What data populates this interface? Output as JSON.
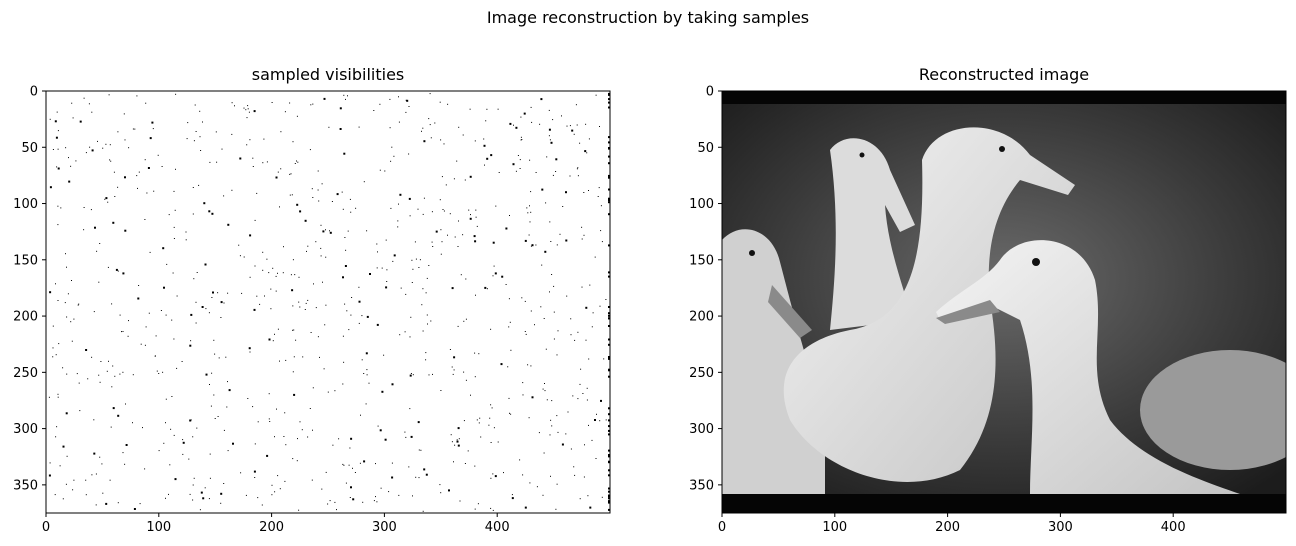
{
  "figure": {
    "suptitle": "Image reconstruction by taking samples"
  },
  "chart_data": [
    {
      "type": "heatmap",
      "title": "sampled visibilities",
      "colormap": "gray",
      "xlim": [
        0,
        500
      ],
      "ylim": [
        375,
        0
      ],
      "xticks": [
        0,
        100,
        200,
        300,
        400
      ],
      "yticks": [
        0,
        50,
        100,
        150,
        200,
        250,
        300,
        350
      ],
      "xticklabels": [
        "0",
        "100",
        "200",
        "300",
        "400"
      ],
      "yticklabels": [
        "0",
        "50",
        "100",
        "150",
        "200",
        "250",
        "300",
        "350"
      ],
      "description": "binary sampling mask: mostly white with sparse black sampled points"
    },
    {
      "type": "heatmap",
      "title": "Reconstructed image",
      "colormap": "gray",
      "xlim": [
        0,
        500
      ],
      "ylim": [
        375,
        0
      ],
      "xticks": [
        0,
        100,
        200,
        300,
        400
      ],
      "yticks": [
        0,
        50,
        100,
        150,
        200,
        250,
        300,
        350
      ],
      "xticklabels": [
        "0",
        "100",
        "200",
        "300",
        "400"
      ],
      "yticklabels": [
        "0",
        "50",
        "100",
        "150",
        "200",
        "250",
        "300",
        "350"
      ],
      "description": "grayscale photo of white ducks with black bands at top and bottom"
    }
  ]
}
